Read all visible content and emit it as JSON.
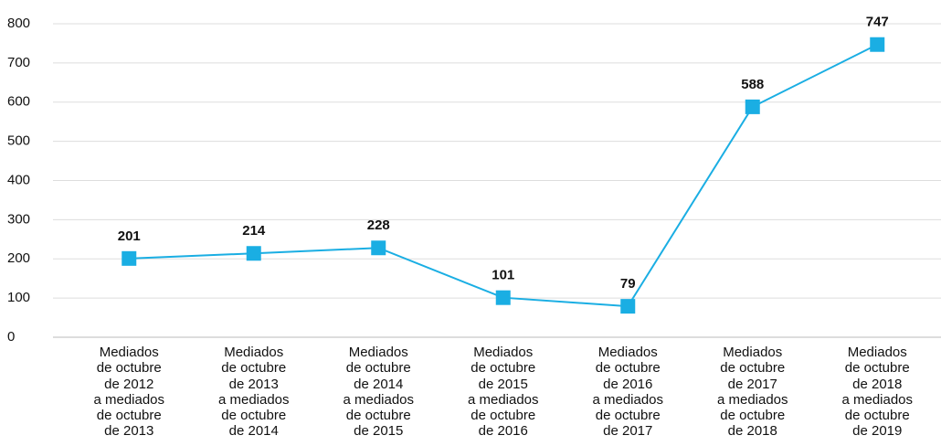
{
  "chart_data": {
    "type": "line",
    "categories": [
      "Mediados\nde octubre\nde 2012\na mediados\nde octubre\nde 2013",
      "Mediados\nde octubre\nde 2013\na mediados\nde octubre\nde 2014",
      "Mediados\nde octubre\nde 2014\na mediados\nde octubre\nde 2015",
      "Mediados\nde octubre\nde 2015\na mediados\nde octubre\nde 2016",
      "Mediados\nde octubre\nde 2016\na mediados\nde octubre\nde 2017",
      "Mediados\nde octubre\nde 2017\na mediados\nde octubre\nde 2018",
      "Mediados\nde octubre\nde 2018\na mediados\nde octubre\nde 2019"
    ],
    "values": [
      201,
      214,
      228,
      101,
      79,
      588,
      747
    ],
    "color": "#1aaee3",
    "ylim": [
      0,
      800
    ],
    "yticks": [
      0,
      100,
      200,
      300,
      400,
      500,
      600,
      700,
      800
    ],
    "grid": true
  }
}
